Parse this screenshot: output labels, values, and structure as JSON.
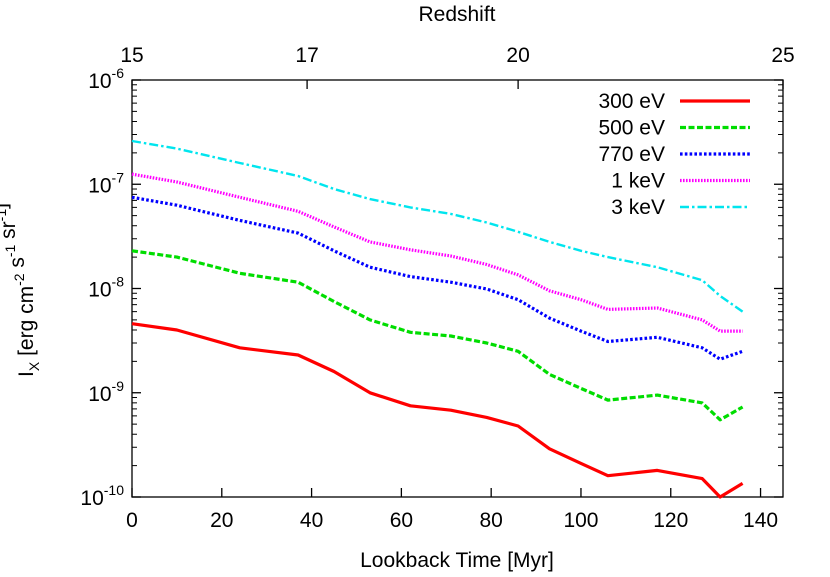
{
  "chart_data": {
    "type": "line",
    "title": "",
    "xlabel": "Lookback Time [Myr]",
    "ylabel": {
      "base": "I",
      "subscript": "X",
      "unit_parts": [
        {
          "text": " [erg cm",
          "sup": "-2"
        },
        {
          "text": " s",
          "sup": "-1"
        },
        {
          "text": " sr",
          "sup": "-1"
        },
        {
          "text": "]",
          "sup": ""
        }
      ]
    },
    "top_xlabel": "Redshift",
    "xlim": [
      0,
      145
    ],
    "ylim": [
      1e-10,
      1e-06
    ],
    "yscale": "log",
    "grid": false,
    "legend_position": "top-right",
    "x_ticks": [
      0,
      20,
      40,
      60,
      80,
      100,
      120,
      140
    ],
    "x_tick_labels": [
      "0",
      "20",
      "40",
      "60",
      "80",
      "100",
      "120",
      "140"
    ],
    "y_ticks": [
      {
        "value": 1e-10,
        "base": "10",
        "exp": "-10"
      },
      {
        "value": 1e-09,
        "base": "10",
        "exp": "-9"
      },
      {
        "value": 1e-08,
        "base": "10",
        "exp": "-8"
      },
      {
        "value": 1e-07,
        "base": "10",
        "exp": "-7"
      },
      {
        "value": 1e-06,
        "base": "10",
        "exp": "-6"
      }
    ],
    "top_ticks": [
      {
        "label": "15",
        "at_lookback": 0
      },
      {
        "label": "17",
        "at_lookback": 39
      },
      {
        "label": "20",
        "at_lookback": 86
      },
      {
        "label": "25",
        "at_lookback": 145
      }
    ],
    "x": [
      0,
      10,
      24,
      37,
      45,
      53,
      62,
      71,
      79,
      86,
      93,
      100,
      106,
      117,
      127,
      131,
      136
    ],
    "series": [
      {
        "name": "300 eV",
        "color": "#ff0000",
        "dash": "solid",
        "values": [
          4.6e-09,
          4e-09,
          2.7e-09,
          2.3e-09,
          1.6e-09,
          1e-09,
          7.5e-10,
          6.8e-10,
          5.8e-10,
          4.8e-10,
          2.9e-10,
          2.1e-10,
          1.6e-10,
          1.8e-10,
          1.5e-10,
          1e-10,
          1.35e-10
        ]
      },
      {
        "name": "500 eV",
        "color": "#00dd00",
        "dash": "dashed",
        "values": [
          2.3e-08,
          2e-08,
          1.4e-08,
          1.15e-08,
          7.5e-09,
          5e-09,
          3.8e-09,
          3.5e-09,
          3e-09,
          2.5e-09,
          1.5e-09,
          1.1e-09,
          8.5e-10,
          9.5e-10,
          8e-10,
          5.5e-10,
          7.3e-10
        ]
      },
      {
        "name": "770 eV",
        "color": "#0000ff",
        "dash": "dotted",
        "values": [
          7.5e-08,
          6.3e-08,
          4.5e-08,
          3.4e-08,
          2.3e-08,
          1.6e-08,
          1.3e-08,
          1.15e-08,
          9.9e-09,
          7.8e-09,
          5.2e-09,
          3.9e-09,
          3.1e-09,
          3.4e-09,
          2.7e-09,
          2.1e-09,
          2.5e-09
        ]
      },
      {
        "name": "1 keV",
        "color": "#ff00ff",
        "dash": "dotted-fine",
        "values": [
          1.25e-07,
          1.05e-07,
          7.5e-08,
          5.5e-08,
          3.9e-08,
          2.8e-08,
          2.35e-08,
          2.05e-08,
          1.7e-08,
          1.35e-08,
          9.5e-09,
          7.8e-09,
          6.3e-09,
          6.5e-09,
          5e-09,
          3.9e-09,
          3.9e-09
        ]
      },
      {
        "name": "3 keV",
        "color": "#00e5ee",
        "dash": "dashdot",
        "values": [
          2.6e-07,
          2.2e-07,
          1.6e-07,
          1.2e-07,
          9e-08,
          7.2e-08,
          6e-08,
          5.2e-08,
          4.3e-08,
          3.5e-08,
          2.8e-08,
          2.3e-08,
          2e-08,
          1.6e-08,
          1.2e-08,
          8.5e-09,
          6e-09
        ]
      }
    ]
  }
}
